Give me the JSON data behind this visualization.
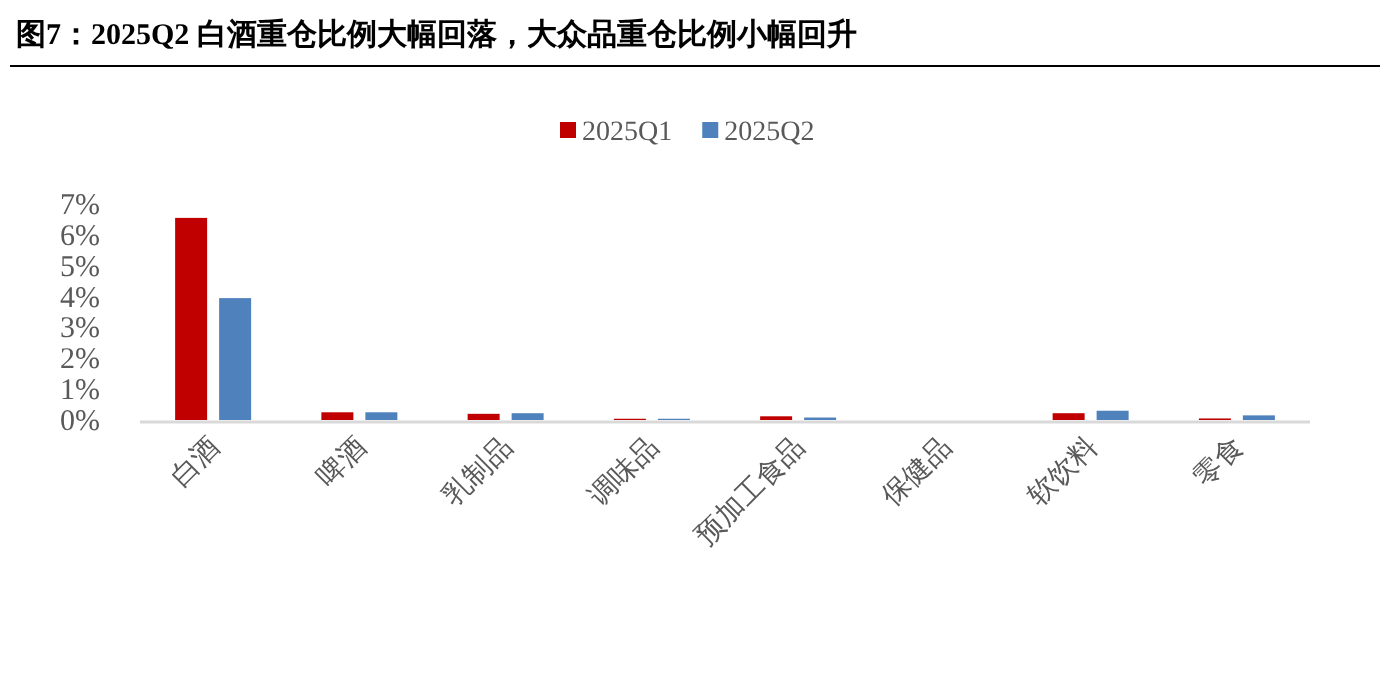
{
  "chart_data": {
    "type": "bar",
    "title": "图7：2025Q2 白酒重仓比例大幅回落，大众品重仓比例小幅回升",
    "categories": [
      "白酒",
      "啤酒",
      "乳制品",
      "调味品",
      "预加工食品",
      "保健品",
      "软饮料",
      "零食"
    ],
    "series": [
      {
        "name": "2025Q1",
        "color": "#c00000",
        "values": [
          6.55,
          0.25,
          0.2,
          0.04,
          0.12,
          0,
          0.22,
          0.05
        ]
      },
      {
        "name": "2025Q2",
        "color": "#4f81bd",
        "values": [
          3.95,
          0.25,
          0.22,
          0.04,
          0.08,
          0,
          0.3,
          0.15
        ]
      }
    ],
    "ylim": [
      0,
      7
    ],
    "yticks": [
      {
        "value": 0,
        "label": "0%"
      },
      {
        "value": 1,
        "label": "1%"
      },
      {
        "value": 2,
        "label": "2%"
      },
      {
        "value": 3,
        "label": "3%"
      },
      {
        "value": 4,
        "label": "4%"
      },
      {
        "value": 5,
        "label": "5%"
      },
      {
        "value": 6,
        "label": "6%"
      },
      {
        "value": 7,
        "label": "7%"
      }
    ],
    "grid": false,
    "legend": "top"
  }
}
